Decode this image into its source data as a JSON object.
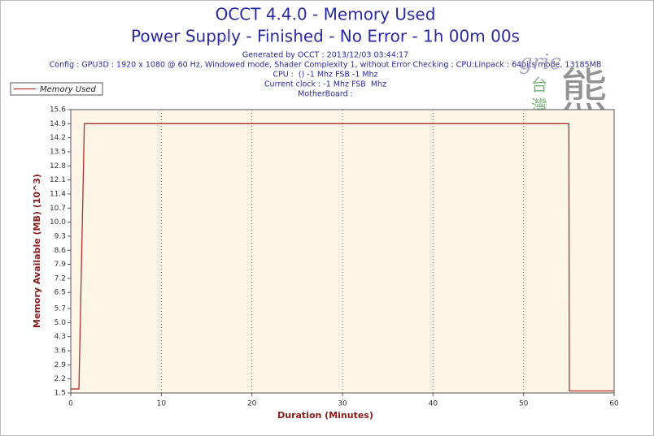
{
  "chart_data": {
    "type": "line",
    "title": "OCCT 4.4.0 - Memory Used",
    "subtitle": "Power Supply - Finished - No Error - 1h 00m 00s",
    "info": [
      "Generated by OCCT : 2013/12/03 03:44:17",
      "Config : GPU3D : 1920 x 1080 @ 60 Hz, Windowed mode, Shader Complexity 1, without Error Checking ; CPU:Linpack : 64bits mode, 13185MB",
      "CPU :  () -1 Mhz FSB -1 Mhz",
      "Current clock : -1 Mhz FSB  Mhz",
      "MotherBoard :"
    ],
    "watermark": [
      "gric",
      "台",
      "灣",
      "熊"
    ],
    "xlabel": "Duration (Minutes)",
    "ylabel": "Memory Available (MB) (10^3)",
    "series": [
      {
        "name": "Memory Used",
        "color": "#b03030",
        "x": [
          0,
          0.9,
          1.5,
          55,
          55.05,
          60
        ],
        "values": [
          1.7,
          1.7,
          14.9,
          14.9,
          1.6,
          1.6
        ]
      }
    ],
    "xlim": [
      0,
      60
    ],
    "xticks": [
      0,
      10,
      20,
      30,
      40,
      50,
      60
    ],
    "ylim": [
      1.5,
      15.6
    ],
    "yticks": [
      1.5,
      2.2,
      2.9,
      3.6,
      4.3,
      {
        "value": 5,
        "label": "5.0"
      },
      5.7,
      6.5,
      7.2,
      7.9,
      8.6,
      9.3,
      {
        "value": 10,
        "label": "10.0"
      },
      10.7,
      11.4,
      12.1,
      12.8,
      13.5,
      14.2,
      14.9,
      15.6
    ],
    "grid": true,
    "legend": "top-left",
    "plot_background": "#fdf5e6"
  }
}
